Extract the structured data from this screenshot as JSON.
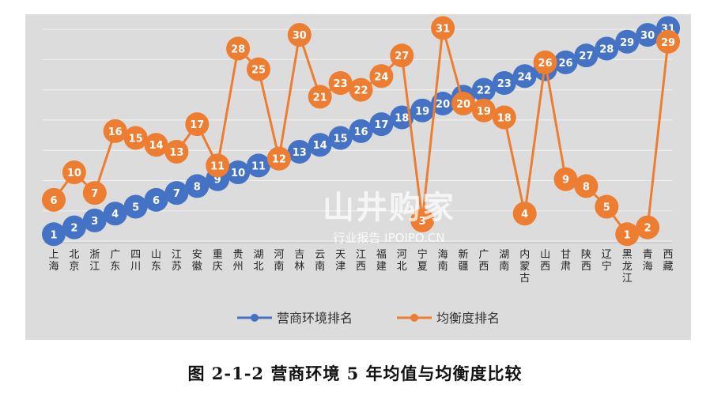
{
  "caption": "图 2-1-2  营商环境 5 年均值与均衡度比较",
  "watermark": {
    "main": "山井购家",
    "sub": "行业报告 IPOIPO.CN"
  },
  "colors": {
    "series_1": "#4472c4",
    "series_2": "#ed7d31",
    "panel_bg": "#dcdcdc",
    "grid": "#f2f2f2"
  },
  "chart_data": {
    "type": "line",
    "title": "",
    "xlabel": "",
    "ylabel": "",
    "ylim": [
      0,
      33
    ],
    "grid": true,
    "legend_position": "bottom",
    "categories": [
      "上海",
      "北京",
      "浙江",
      "广东",
      "四川",
      "山东",
      "江苏",
      "安徽",
      "重庆",
      "贵州",
      "湖北",
      "河南",
      "吉林",
      "云南",
      "天津",
      "江西",
      "福建",
      "河北",
      "宁夏",
      "海南",
      "新疆",
      "广西",
      "湖南",
      "内蒙古",
      "山西",
      "甘肃",
      "陕西",
      "辽宁",
      "黑龙江",
      "青海",
      "西藏"
    ],
    "series": [
      {
        "name": "营商环境排名",
        "color": "#4472c4",
        "values": [
          1,
          2,
          3,
          4,
          5,
          6,
          7,
          8,
          9,
          10,
          11,
          12,
          13,
          14,
          15,
          16,
          17,
          18,
          19,
          20,
          21,
          22,
          23,
          24,
          25,
          26,
          27,
          28,
          29,
          30,
          31
        ]
      },
      {
        "name": "均衡度排名",
        "color": "#ed7d31",
        "values": [
          6,
          10,
          7,
          16,
          15,
          14,
          13,
          17,
          11,
          28,
          25,
          12,
          30,
          21,
          23,
          22,
          24,
          27,
          3,
          31,
          20,
          19,
          18,
          4,
          26,
          9,
          8,
          5,
          1,
          2,
          29
        ]
      }
    ]
  }
}
